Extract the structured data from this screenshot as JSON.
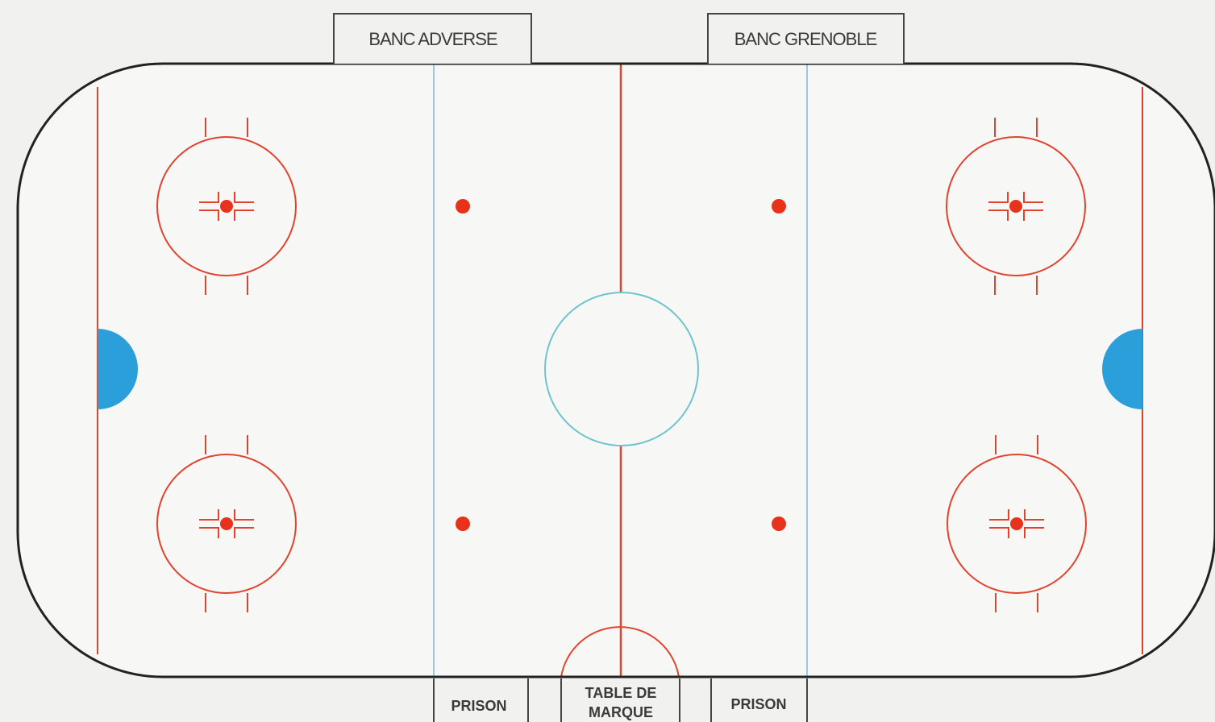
{
  "benches": {
    "away_label": "BANC ADVERSE",
    "home_label": "BANC GRENOBLE"
  },
  "bottom_boxes": {
    "penalty_left_label": "PRISON",
    "score_table_line1": "TABLE DE",
    "score_table_line2": "MARQUE",
    "penalty_right_label": "PRISON"
  },
  "colors": {
    "background": "#f1f1ef",
    "ice": "#f7f7f5",
    "boards": "#222222",
    "red_line": "#e0442f",
    "blue_line": "#9cc6e6",
    "center_circle": "#6fc3cf",
    "crease": "#2a9fd9",
    "faceoff_dot": "#e8321c",
    "box_border": "#444444"
  }
}
